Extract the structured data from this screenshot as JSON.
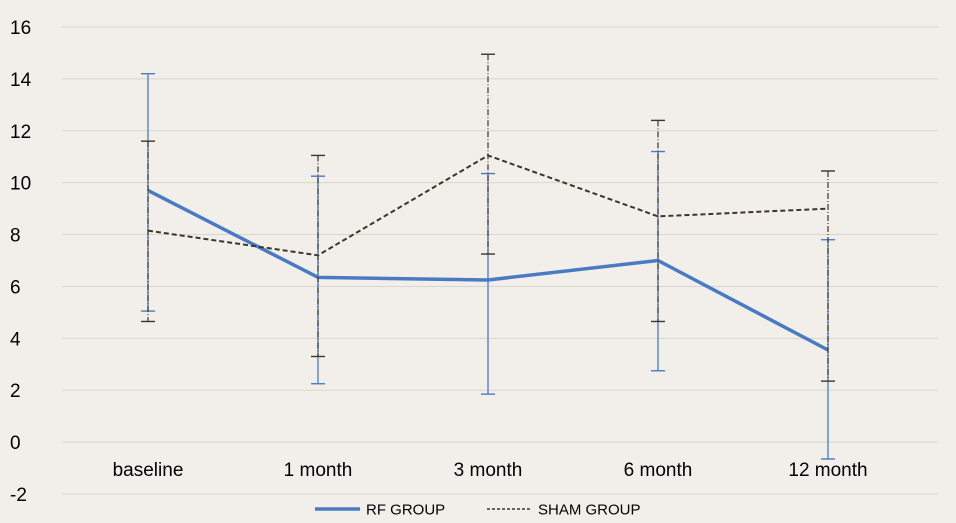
{
  "chart_data": {
    "type": "line",
    "title": "",
    "xlabel": "",
    "ylabel": "",
    "categories": [
      "baseline",
      "1 month",
      "3 month",
      "6 month",
      "12 month"
    ],
    "ylim": [
      -2,
      16
    ],
    "yticks": [
      -2,
      0,
      2,
      4,
      6,
      8,
      10,
      12,
      14,
      16
    ],
    "grid": "horizontal",
    "legend_position": "bottom",
    "series": [
      {
        "name": "RF GROUP",
        "color": "#4a7bc2",
        "style": "solid",
        "values": [
          9.7,
          6.35,
          6.25,
          7.0,
          3.55
        ],
        "error_low": [
          5.05,
          2.25,
          1.85,
          2.75,
          -0.65
        ],
        "error_high": [
          14.2,
          10.25,
          10.35,
          11.2,
          7.8
        ]
      },
      {
        "name": "SHAM GROUP",
        "color": "#3d3528",
        "style": "dashed",
        "values": [
          8.15,
          7.2,
          11.05,
          8.7,
          9.0
        ],
        "error_low": [
          4.65,
          3.3,
          7.25,
          4.65,
          2.35
        ],
        "error_high": [
          11.6,
          11.05,
          14.95,
          12.4,
          10.45
        ]
      }
    ]
  }
}
